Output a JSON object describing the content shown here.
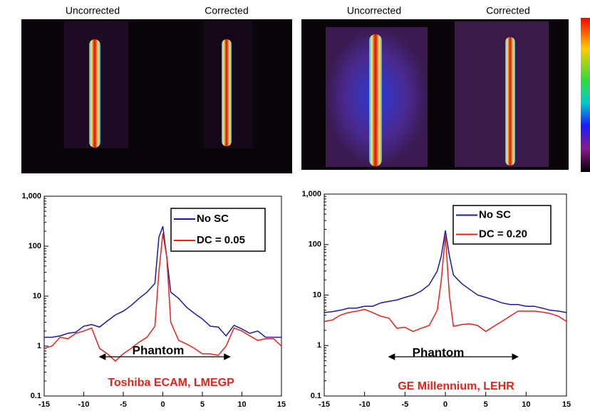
{
  "images": {
    "labels": [
      "Uncorrected",
      "Corrected",
      "Uncorrected",
      "Corrected"
    ]
  },
  "chart_data": [
    {
      "type": "line",
      "yscale": "log",
      "x": [
        -15,
        -14,
        -13,
        -12,
        -11,
        -10,
        -9,
        -8,
        -7,
        -6,
        -5,
        -4,
        -3,
        -2,
        -1,
        -0.5,
        0,
        0.5,
        1,
        2,
        3,
        4,
        5,
        6,
        7,
        8,
        9,
        10,
        11,
        12,
        13,
        14,
        15
      ],
      "series": [
        {
          "name": "No SC",
          "color": "#1a1aa8",
          "values": [
            1.5,
            1.5,
            1.6,
            1.8,
            1.9,
            2.5,
            2.7,
            2.4,
            3.2,
            4.2,
            5,
            6.5,
            9,
            12,
            18,
            150,
            250,
            60,
            12,
            9,
            6,
            4.5,
            3.5,
            2.5,
            2.4,
            1.6,
            2.6,
            2.2,
            1.8,
            2,
            1.5,
            1.5,
            1.5
          ]
        },
        {
          "name": "DC = 0.05",
          "color": "#e8221b",
          "values": [
            0.9,
            1.0,
            1.5,
            1.4,
            1.8,
            2.0,
            2.3,
            0.9,
            0.7,
            0.5,
            0.7,
            0.9,
            1.2,
            1.5,
            2.5,
            30,
            180,
            60,
            3,
            1.3,
            1.1,
            0.9,
            0.7,
            0.7,
            0.65,
            1.0,
            2.3,
            2.0,
            1.6,
            1.3,
            1.4,
            1.4,
            1.0
          ]
        }
      ],
      "xlim": [
        -15,
        15
      ],
      "xticks": [
        -15,
        -10,
        -5,
        0,
        5,
        10,
        15
      ],
      "ylim": [
        0.1,
        1000
      ],
      "yticks": [
        0.1,
        1,
        10,
        100,
        {
          "value": 1000,
          "label": "1,000"
        }
      ],
      "annotations": [
        "Phantom",
        "Toshiba ECAM, LMEGP"
      ]
    },
    {
      "type": "line",
      "yscale": "log",
      "x": [
        -15,
        -14,
        -13,
        -12,
        -11,
        -10,
        -9,
        -8,
        -7,
        -6,
        -5,
        -4,
        -3,
        -2,
        -1,
        -0.5,
        0,
        0.5,
        1,
        2,
        3,
        4,
        5,
        6,
        7,
        8,
        9,
        10,
        11,
        12,
        13,
        14,
        15
      ],
      "series": [
        {
          "name": "No SC",
          "color": "#1a1aa8",
          "values": [
            4.5,
            4.7,
            5,
            5.5,
            5.5,
            6,
            6,
            7,
            7.5,
            8,
            9,
            10,
            12,
            16,
            30,
            60,
            190,
            60,
            25,
            17,
            13,
            10,
            9,
            8,
            7,
            6.5,
            6.5,
            6,
            6,
            5.5,
            5,
            4.8,
            4.5
          ]
        },
        {
          "name": "DC = 0.20",
          "color": "#e8221b",
          "values": [
            3,
            3.2,
            4,
            4.5,
            4.8,
            5.2,
            4.5,
            3.8,
            3.5,
            2.2,
            2.3,
            1.9,
            2.2,
            2.5,
            5,
            20,
            150,
            10,
            2.4,
            2.6,
            2.7,
            2.5,
            1.9,
            2.4,
            3.0,
            3.8,
            4.8,
            4.8,
            4.8,
            4.6,
            4.3,
            3.8,
            3.0
          ]
        }
      ],
      "xlim": [
        -15,
        15
      ],
      "xticks": [
        -15,
        -10,
        -5,
        0,
        5,
        10,
        15
      ],
      "ylim": [
        0.1,
        1000
      ],
      "yticks": [
        0.1,
        1,
        10,
        100,
        {
          "value": 1000,
          "label": "1,000"
        }
      ],
      "annotations": [
        "Phantom",
        "GE Millennium, LEHR"
      ]
    }
  ]
}
